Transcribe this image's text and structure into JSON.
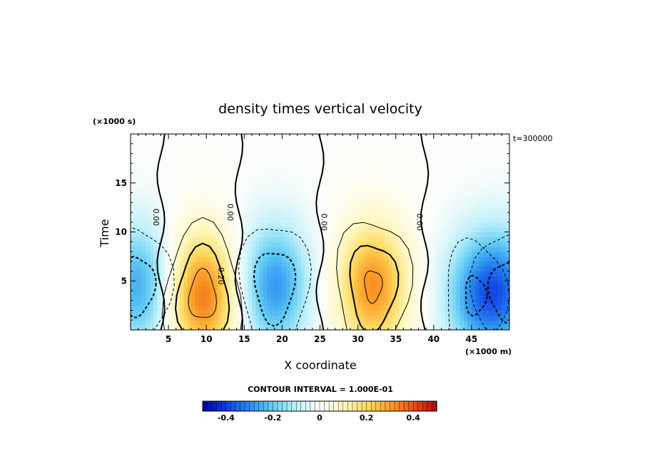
{
  "chart_data": {
    "type": "heatmap",
    "title": "density times vertical velocity",
    "xlabel": "X coordinate",
    "ylabel": "Time",
    "x_unit": "(×1000 m)",
    "y_unit": "(×1000 s)",
    "time_label": "t=300000",
    "xlim": [
      0,
      50
    ],
    "ylim": [
      0,
      20
    ],
    "x_ticks": [
      5,
      10,
      15,
      20,
      25,
      30,
      35,
      40,
      45
    ],
    "y_ticks": [
      5,
      10,
      15
    ],
    "contour_interval_text": "CONTOUR INTERVAL = 1.000E-01",
    "contour_interval": 0.1,
    "zero_contour_label": "0.00",
    "inner_contour_label": "0.20",
    "colorbar": {
      "range": [
        -0.5,
        0.5
      ],
      "ticks": [
        -0.4,
        -0.2,
        0,
        0.2,
        0.4
      ],
      "tick_labels": [
        "-0.4",
        "-0.2",
        "0",
        "0.2",
        "0.4"
      ]
    },
    "features": [
      {
        "kind": "max",
        "x": 9.5,
        "t": 3.5,
        "value": 0.35
      },
      {
        "kind": "max",
        "x": 32,
        "t": 4.5,
        "value": 0.32
      },
      {
        "kind": "min",
        "x": 19,
        "t": 4.5,
        "value": -0.28
      },
      {
        "kind": "min",
        "x": 1,
        "t": 4.5,
        "value": -0.25
      },
      {
        "kind": "min",
        "x": 45.5,
        "t": 3.5,
        "value": -0.22
      },
      {
        "kind": "min",
        "x": 49.5,
        "t": 4,
        "value": -0.25
      }
    ]
  }
}
